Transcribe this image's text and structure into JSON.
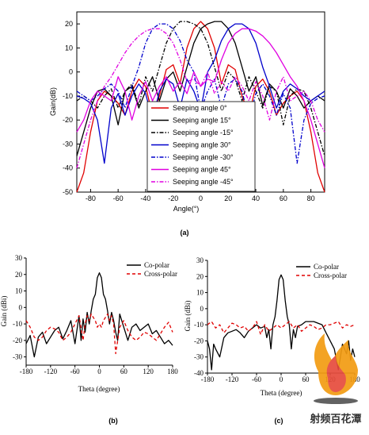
{
  "chart_data": [
    {
      "panel_label": "(a)",
      "type": "line",
      "xlabel": "Angle(°)",
      "ylabel": "Gain(dB)",
      "xlim": [
        -90,
        90
      ],
      "ylim": [
        -50,
        25
      ],
      "x_ticks": [
        -80,
        -60,
        -40,
        -20,
        0,
        20,
        40,
        60,
        80
      ],
      "y_ticks": [
        20,
        10,
        0,
        -10,
        -20,
        -30,
        -40,
        -50
      ],
      "grid": false,
      "legend_position": "bottom-center",
      "series": [
        {
          "name": "Seeping angle 0°",
          "color": "#e00000",
          "dash": "solid",
          "x": [
            -90,
            -85,
            -80,
            -75,
            -70,
            -65,
            -60,
            -55,
            -50,
            -45,
            -40,
            -35,
            -30,
            -25,
            -20,
            -15,
            -10,
            -5,
            0,
            5,
            10,
            15,
            20,
            25,
            30,
            35,
            40,
            45,
            50,
            55,
            60,
            65,
            70,
            75,
            80,
            85,
            90
          ],
          "y": [
            -50,
            -42,
            -25,
            -12,
            -8,
            -10,
            -13,
            -18,
            -8,
            -3,
            -6,
            -18,
            -10,
            1,
            3,
            -5,
            10,
            18,
            21,
            18,
            10,
            -5,
            3,
            1,
            -10,
            -18,
            -6,
            -3,
            -8,
            -18,
            -13,
            -10,
            -8,
            -12,
            -25,
            -42,
            -50
          ]
        },
        {
          "name": "Seeping angle 15°",
          "color": "#000000",
          "dash": "solid",
          "x": [
            -90,
            -85,
            -80,
            -75,
            -70,
            -65,
            -60,
            -55,
            -50,
            -45,
            -40,
            -35,
            -30,
            -25,
            -20,
            -15,
            -10,
            -5,
            0,
            5,
            10,
            15,
            20,
            25,
            30,
            35,
            40,
            45,
            50,
            55,
            60,
            65,
            70,
            75,
            80,
            85,
            90
          ],
          "y": [
            -35,
            -25,
            -15,
            -8,
            -7,
            -10,
            -22,
            -8,
            -6,
            -15,
            -8,
            -2,
            -12,
            -3,
            0,
            -8,
            2,
            12,
            18,
            20,
            21,
            21,
            18,
            12,
            2,
            -8,
            -2,
            -14,
            -5,
            -8,
            -15,
            -7,
            -10,
            -15,
            -12,
            -10,
            -12
          ]
        },
        {
          "name": "Seeping angle -15°",
          "color": "#000000",
          "dash": "dashdot",
          "x": [
            -90,
            -85,
            -80,
            -75,
            -70,
            -65,
            -60,
            -55,
            -50,
            -45,
            -40,
            -35,
            -30,
            -25,
            -20,
            -15,
            -10,
            -5,
            0,
            5,
            10,
            15,
            20,
            25,
            30,
            35,
            40,
            45,
            50,
            55,
            60,
            65,
            70,
            75,
            80,
            85,
            90
          ],
          "y": [
            -12,
            -10,
            -12,
            -15,
            -10,
            -7,
            -15,
            -8,
            -5,
            -14,
            -2,
            -8,
            2,
            12,
            18,
            21,
            21,
            20,
            18,
            12,
            2,
            -8,
            0,
            -3,
            -12,
            -2,
            -8,
            -15,
            -6,
            -8,
            -22,
            -10,
            -7,
            -8,
            -15,
            -25,
            -35
          ]
        },
        {
          "name": "Seeping angle 30°",
          "color": "#0000cc",
          "dash": "solid",
          "x": [
            -90,
            -85,
            -80,
            -75,
            -70,
            -65,
            -60,
            -55,
            -50,
            -45,
            -40,
            -35,
            -30,
            -25,
            -20,
            -15,
            -10,
            -5,
            0,
            5,
            10,
            15,
            20,
            25,
            30,
            35,
            40,
            45,
            50,
            55,
            60,
            65,
            70,
            75,
            80,
            85,
            90
          ],
          "y": [
            -10,
            -11,
            -13,
            -20,
            -38,
            -15,
            -9,
            -18,
            -10,
            -5,
            -9,
            -20,
            -8,
            -3,
            -5,
            -15,
            -3,
            -8,
            -16,
            0,
            5,
            13,
            18,
            20,
            20,
            18,
            12,
            2,
            -6,
            -15,
            -8,
            -5,
            -7,
            -10,
            -12,
            -10,
            -8
          ]
        },
        {
          "name": "Seeping angle -30°",
          "color": "#0000cc",
          "dash": "dashdot",
          "x": [
            -90,
            -85,
            -80,
            -75,
            -70,
            -65,
            -60,
            -55,
            -50,
            -45,
            -40,
            -35,
            -30,
            -25,
            -20,
            -15,
            -10,
            -5,
            0,
            5,
            10,
            15,
            20,
            25,
            30,
            35,
            40,
            45,
            50,
            55,
            60,
            65,
            70,
            75,
            80,
            85,
            90
          ],
          "y": [
            -8,
            -10,
            -12,
            -10,
            -7,
            -5,
            -8,
            -15,
            -6,
            2,
            12,
            18,
            20,
            20,
            18,
            13,
            5,
            0,
            -16,
            -8,
            -3,
            -15,
            -5,
            -3,
            -8,
            -20,
            -9,
            -5,
            -10,
            -18,
            -9,
            -15,
            -38,
            -20,
            -13,
            -11,
            -10
          ]
        },
        {
          "name": "Seeping angle 45°",
          "color": "#e000e0",
          "dash": "solid",
          "x": [
            -90,
            -85,
            -80,
            -75,
            -70,
            -65,
            -60,
            -55,
            -50,
            -45,
            -40,
            -35,
            -30,
            -25,
            -20,
            -15,
            -10,
            -5,
            0,
            5,
            10,
            15,
            20,
            25,
            30,
            35,
            40,
            45,
            50,
            55,
            60,
            65,
            70,
            75,
            80,
            85,
            90
          ],
          "y": [
            -25,
            -20,
            -12,
            -8,
            -10,
            -12,
            -2,
            -8,
            -20,
            -10,
            -4,
            -12,
            -6,
            -2,
            -8,
            -4,
            -9,
            0,
            -6,
            -3,
            -4,
            5,
            12,
            16,
            18,
            18,
            17,
            15,
            12,
            8,
            3,
            -2,
            -6,
            -12,
            -20,
            -30,
            -40
          ]
        },
        {
          "name": "Seeping angle -45°",
          "color": "#e000e0",
          "dash": "dashdot",
          "x": [
            -90,
            -85,
            -80,
            -75,
            -70,
            -65,
            -60,
            -55,
            -50,
            -45,
            -40,
            -35,
            -30,
            -25,
            -20,
            -15,
            -10,
            -5,
            0,
            5,
            10,
            15,
            20,
            25,
            30,
            35,
            40,
            45,
            50,
            55,
            60,
            65,
            70,
            75,
            80,
            85,
            90
          ],
          "y": [
            -40,
            -30,
            -20,
            -12,
            -6,
            -2,
            3,
            8,
            12,
            15,
            17,
            18,
            18,
            16,
            12,
            5,
            -4,
            -3,
            -6,
            0,
            -9,
            -4,
            -8,
            -2,
            -6,
            -12,
            -4,
            -10,
            -20,
            -8,
            -2,
            -12,
            -10,
            -8,
            -12,
            -20,
            -25
          ]
        }
      ]
    },
    {
      "panel_label": "(b)",
      "type": "line",
      "xlabel": "Theta (degree)",
      "ylabel": "Gain (dBi)",
      "xlim": [
        -180,
        180
      ],
      "ylim": [
        -35,
        30
      ],
      "x_ticks": [
        -180,
        -120,
        -60,
        0,
        60,
        120,
        180
      ],
      "y_ticks": [
        30,
        20,
        10,
        0,
        -10,
        -20,
        -30
      ],
      "grid": false,
      "legend_position": "top-right",
      "series": [
        {
          "name": "Co-polar",
          "color": "#000000",
          "dash": "solid",
          "x": [
            -180,
            -170,
            -160,
            -150,
            -140,
            -130,
            -120,
            -110,
            -100,
            -90,
            -80,
            -70,
            -60,
            -50,
            -45,
            -40,
            -35,
            -30,
            -25,
            -20,
            -15,
            -10,
            -5,
            0,
            5,
            10,
            15,
            20,
            25,
            30,
            35,
            40,
            45,
            50,
            60,
            70,
            80,
            90,
            100,
            110,
            120,
            130,
            140,
            150,
            160,
            170,
            180
          ],
          "y": [
            -22,
            -17,
            -30,
            -18,
            -15,
            -22,
            -18,
            -14,
            -12,
            -19,
            -14,
            -8,
            -22,
            -5,
            -20,
            -7,
            -15,
            -3,
            -10,
            -2,
            5,
            8,
            18,
            21,
            18,
            8,
            5,
            -2,
            -10,
            -3,
            -8,
            -15,
            -20,
            -4,
            -12,
            -20,
            -12,
            -10,
            -14,
            -12,
            -10,
            -16,
            -14,
            -18,
            -22,
            -20,
            -23
          ]
        },
        {
          "name": "Cross-polar",
          "color": "#e00000",
          "dash": "dashed",
          "x": [
            -180,
            -170,
            -160,
            -150,
            -140,
            -130,
            -120,
            -110,
            -100,
            -90,
            -80,
            -70,
            -60,
            -50,
            -40,
            -35,
            -30,
            -25,
            -20,
            -15,
            -10,
            -5,
            0,
            5,
            10,
            15,
            20,
            25,
            30,
            35,
            40,
            50,
            60,
            70,
            80,
            90,
            100,
            110,
            120,
            130,
            140,
            150,
            160,
            170,
            180
          ],
          "y": [
            -8,
            -12,
            -18,
            -20,
            -18,
            -14,
            -12,
            -13,
            -15,
            -20,
            -18,
            -15,
            -10,
            -5,
            -20,
            -10,
            -5,
            -8,
            -4,
            -6,
            -8,
            -12,
            -10,
            -12,
            -8,
            -6,
            -4,
            -8,
            -5,
            -10,
            -28,
            -12,
            -8,
            -14,
            -18,
            -20,
            -18,
            -15,
            -16,
            -18,
            -20,
            -16,
            -12,
            -9,
            -15
          ]
        }
      ]
    },
    {
      "panel_label": "(c)",
      "type": "line",
      "xlabel": "Theta (degree)",
      "ylabel": "Gain (dBi)",
      "xlim": [
        -180,
        180
      ],
      "ylim": [
        -40,
        30
      ],
      "x_ticks": [
        -180,
        -120,
        -60,
        0,
        60,
        120,
        180
      ],
      "y_ticks": [
        30,
        20,
        10,
        0,
        -10,
        -20,
        -30,
        -40
      ],
      "grid": false,
      "legend_position": "top-right",
      "series": [
        {
          "name": "Co-polar",
          "color": "#000000",
          "dash": "solid",
          "x": [
            -180,
            -175,
            -170,
            -165,
            -160,
            -150,
            -140,
            -130,
            -120,
            -110,
            -100,
            -90,
            -80,
            -70,
            -60,
            -50,
            -40,
            -35,
            -30,
            -25,
            -20,
            -15,
            -10,
            -5,
            0,
            5,
            10,
            15,
            20,
            25,
            30,
            35,
            40,
            50,
            60,
            80,
            100,
            110,
            120,
            130,
            140,
            150,
            160,
            165,
            170,
            175,
            180
          ],
          "y": [
            -20,
            -25,
            -38,
            -22,
            -25,
            -30,
            -18,
            -15,
            -14,
            -13,
            -15,
            -18,
            -14,
            -12,
            -10,
            -12,
            -11,
            -18,
            -13,
            -25,
            -10,
            -5,
            5,
            18,
            21,
            18,
            5,
            -5,
            -10,
            -25,
            -13,
            -18,
            -11,
            -10,
            -8,
            -8,
            -10,
            -15,
            -20,
            -25,
            -38,
            -22,
            -28,
            -20,
            -32,
            -25,
            -30
          ]
        },
        {
          "name": "Cross-polar",
          "color": "#e00000",
          "dash": "dashed",
          "x": [
            -180,
            -170,
            -160,
            -150,
            -140,
            -130,
            -120,
            -110,
            -100,
            -90,
            -80,
            -70,
            -60,
            -50,
            -40,
            -30,
            -20,
            -10,
            0,
            10,
            20,
            30,
            40,
            50,
            60,
            70,
            80,
            90,
            100,
            110,
            120,
            130,
            140,
            150,
            160,
            170,
            180
          ],
          "y": [
            -10,
            -8,
            -12,
            -10,
            -15,
            -12,
            -9,
            -10,
            -12,
            -11,
            -14,
            -12,
            -8,
            -16,
            -10,
            -14,
            -12,
            -10,
            -12,
            -10,
            -8,
            -12,
            -10,
            -14,
            -12,
            -10,
            -11,
            -13,
            -12,
            -10,
            -10,
            -9,
            -8,
            -12,
            -10,
            -11,
            -10
          ]
        }
      ]
    }
  ],
  "watermark": {
    "text": "射频百花潭",
    "flame_colors": [
      "#f39c12",
      "#e74c3c",
      "#f5d76e"
    ]
  }
}
